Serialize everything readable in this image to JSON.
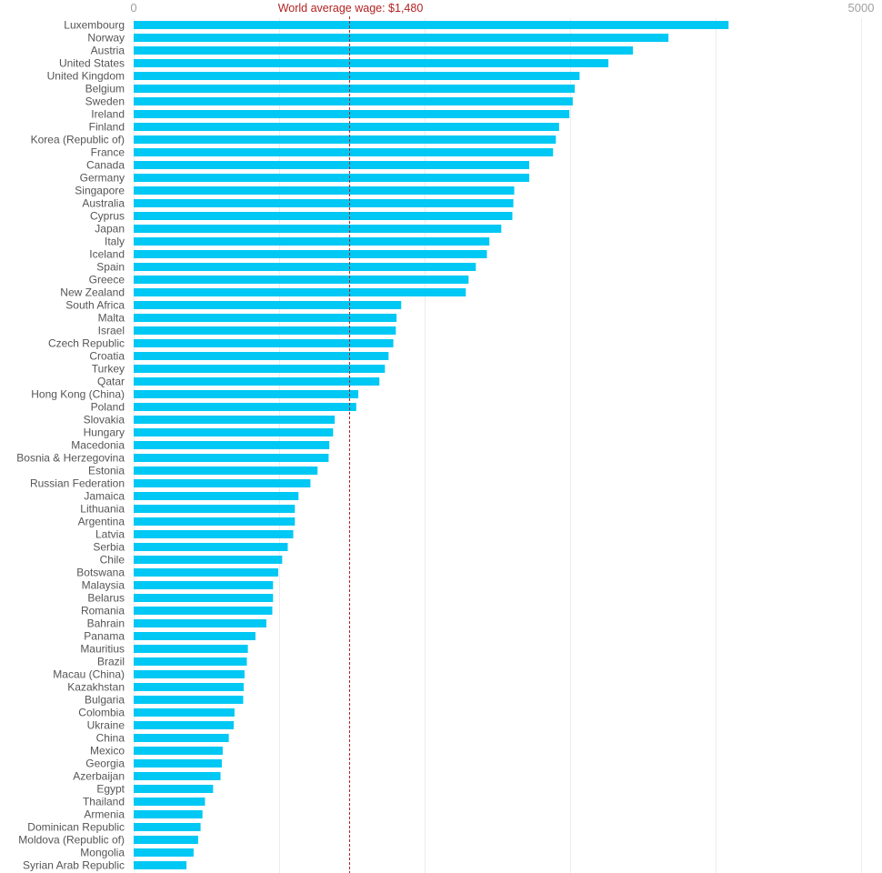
{
  "chart_data": {
    "type": "bar",
    "orientation": "horizontal",
    "title": "",
    "xlabel": "",
    "ylabel": "",
    "xlim": [
      0,
      5000
    ],
    "x_ticks": [
      0,
      1000,
      2000,
      3000,
      4000,
      5000
    ],
    "x_tick_labels": [
      "0",
      "5000"
    ],
    "grid": true,
    "bar_color": "#00c8f4",
    "reference_line": {
      "value": 1480,
      "label": "World average wage: $1,480",
      "color": "#b22222"
    },
    "categories": [
      "Luxembourg",
      "Norway",
      "Austria",
      "United States",
      "United Kingdom",
      "Belgium",
      "Sweden",
      "Ireland",
      "Finland",
      "Korea (Republic of)",
      "France",
      "Canada",
      "Germany",
      "Singapore",
      "Australia",
      "Cyprus",
      "Japan",
      "Italy",
      "Iceland",
      "Spain",
      "Greece",
      "New Zealand",
      "South Africa",
      "Malta",
      "Israel",
      "Czech Republic",
      "Croatia",
      "Turkey",
      "Qatar",
      "Hong Kong (China)",
      "Poland",
      "Slovakia",
      "Hungary",
      "Macedonia",
      "Bosnia & Herzegovina",
      "Estonia",
      "Russian Federation",
      "Jamaica",
      "Lithuania",
      "Argentina",
      "Latvia",
      "Serbia",
      "Chile",
      "Botswana",
      "Malaysia",
      "Belarus",
      "Romania",
      "Bahrain",
      "Panama",
      "Mauritius",
      "Brazil",
      "Macau (China)",
      "Kazakhstan",
      "Bulgaria",
      "Colombia",
      "Ukraine",
      "China",
      "Mexico",
      "Georgia",
      "Azerbaijan",
      "Egypt",
      "Thailand",
      "Armenia",
      "Dominican Republic",
      "Moldova (Republic of)",
      "Mongolia",
      "Syrian Arab Republic"
    ],
    "values": [
      4089,
      3676,
      3432,
      3263,
      3065,
      3032,
      3018,
      2995,
      2924,
      2902,
      2883,
      2719,
      2719,
      2616,
      2610,
      2603,
      2527,
      2445,
      2428,
      2352,
      2302,
      2283,
      1839,
      1807,
      1802,
      1785,
      1752,
      1727,
      1689,
      1544,
      1530,
      1382,
      1371,
      1345,
      1340,
      1264,
      1215,
      1133,
      1108,
      1108,
      1097,
      1059,
      1021,
      994,
      958,
      958,
      953,
      912,
      837,
      785,
      778,
      762,
      756,
      753,
      693,
      688,
      654,
      612,
      606,
      597,
      546,
      490,
      473,
      460,
      443,
      412,
      363
    ]
  }
}
